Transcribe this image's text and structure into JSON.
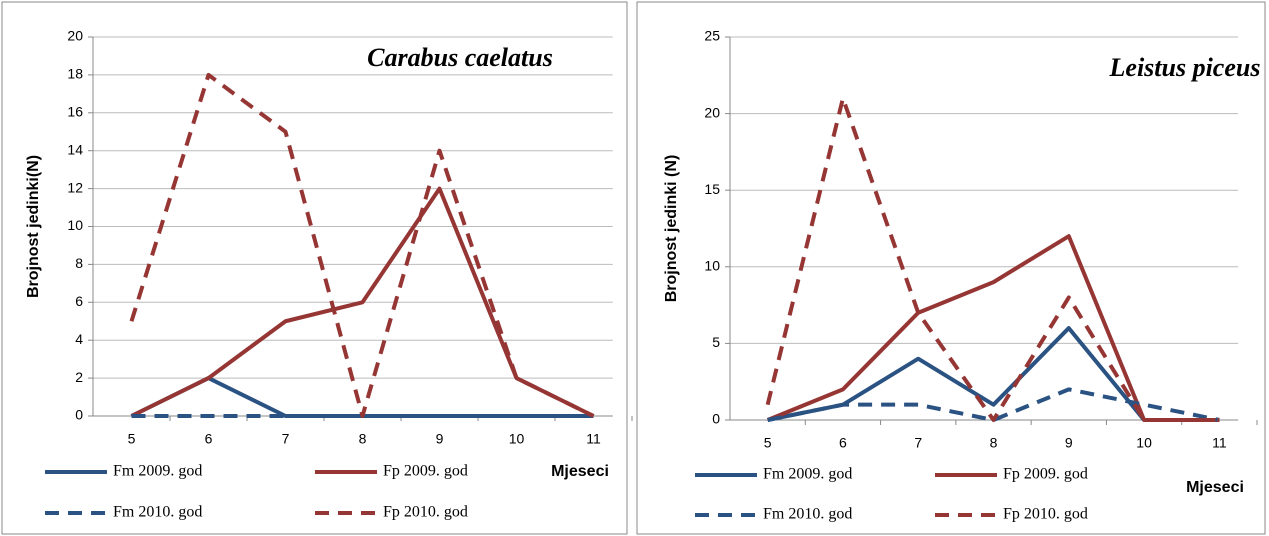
{
  "chart_data": [
    {
      "type": "line",
      "title": "Carabus caelatus",
      "x_label": "Mjeseci",
      "y_label": "Brojnost jedinki(N)",
      "categories": [
        "5",
        "6",
        "7",
        "8",
        "9",
        "10",
        "11"
      ],
      "ylim": [
        0,
        20
      ],
      "yticks": [
        0,
        2,
        4,
        6,
        8,
        10,
        12,
        14,
        16,
        18,
        20
      ],
      "grid": true,
      "series": [
        {
          "name": "Fm 2009. god",
          "color": "#2a5282",
          "dash": false,
          "values": [
            0,
            2,
            0,
            0,
            0,
            0,
            0
          ]
        },
        {
          "name": "Fp 2009. god",
          "color": "#963634",
          "dash": false,
          "values": [
            0,
            2,
            5,
            6,
            12,
            2,
            0
          ]
        },
        {
          "name": "Fm 2010. god",
          "color": "#2a5282",
          "dash": true,
          "values": [
            0,
            0,
            0,
            0,
            0,
            0,
            0
          ]
        },
        {
          "name": "Fp 2010. god",
          "color": "#963634",
          "dash": true,
          "values": [
            5,
            18,
            15,
            0,
            14,
            2,
            0
          ]
        }
      ]
    },
    {
      "type": "line",
      "title": "Leistus piceus",
      "x_label": "Mjeseci",
      "y_label": "Brojnost jedinki (N)",
      "categories": [
        "5",
        "6",
        "7",
        "8",
        "9",
        "10",
        "11"
      ],
      "ylim": [
        0,
        25
      ],
      "yticks": [
        0,
        5,
        10,
        15,
        20,
        25
      ],
      "grid": true,
      "series": [
        {
          "name": "Fm 2009. god",
          "color": "#2a5282",
          "dash": false,
          "values": [
            0,
            1,
            4,
            1,
            6,
            0,
            0
          ]
        },
        {
          "name": "Fp 2009. god",
          "color": "#963634",
          "dash": false,
          "values": [
            0,
            2,
            7,
            9,
            12,
            0,
            0
          ]
        },
        {
          "name": "Fm 2010. god",
          "color": "#2a5282",
          "dash": true,
          "values": [
            0,
            1,
            1,
            0,
            2,
            1,
            0
          ]
        },
        {
          "name": "Fp 2010. god",
          "color": "#963634",
          "dash": true,
          "values": [
            1,
            21,
            7,
            0,
            8,
            0,
            0
          ]
        }
      ]
    }
  ]
}
